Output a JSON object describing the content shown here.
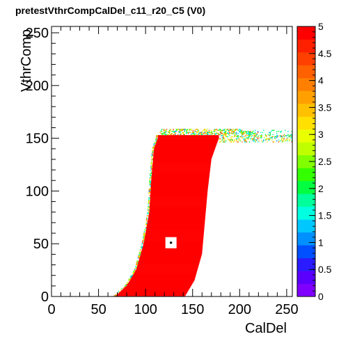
{
  "chart_data": {
    "type": "heatmap",
    "title": "pretestVthrCompCalDel_c11_r20_C5 (V0)",
    "xlabel": "CalDel",
    "ylabel": "VthrComp",
    "xlim": [
      0,
      256
    ],
    "ylim": [
      0,
      256
    ],
    "x_ticks": [
      0,
      50,
      100,
      150,
      200,
      250
    ],
    "y_ticks": [
      0,
      50,
      100,
      150,
      200,
      250
    ],
    "z_range": [
      0,
      5
    ],
    "z_ticks": [
      "0",
      "0.5",
      "1",
      "1.5",
      "2",
      "2.5",
      "3",
      "3.5",
      "4",
      "4.5",
      "5"
    ],
    "palette": [
      "#8000ff",
      "#5a00ff",
      "#2a1cff",
      "#0050ff",
      "#0090ff",
      "#00c8ff",
      "#00ffe0",
      "#00ff9a",
      "#00ff40",
      "#34ff00",
      "#80ff00",
      "#c0ff00",
      "#eaff00",
      "#ffe000",
      "#ffc000",
      "#ffa000",
      "#ff8000",
      "#ff6000",
      "#ff4000",
      "#ff2000",
      "#ff0000"
    ],
    "region": {
      "description_values": "filled band (value 5) bounded by left/right edges per VthrComp",
      "left_edge": [
        [
          0,
          68
        ],
        [
          10,
          80
        ],
        [
          25,
          90
        ],
        [
          50,
          98
        ],
        [
          80,
          104
        ],
        [
          110,
          106
        ],
        [
          140,
          109
        ],
        [
          150,
          113
        ]
      ],
      "right_edge": [
        [
          0,
          142
        ],
        [
          15,
          152
        ],
        [
          40,
          160
        ],
        [
          70,
          163
        ],
        [
          100,
          166
        ],
        [
          130,
          170
        ],
        [
          145,
          176
        ],
        [
          150,
          178
        ]
      ],
      "top_y": 152,
      "fringe_top_y": 158,
      "fringe_x_range": [
        113,
        256
      ],
      "fringe_extend_x": 200,
      "fringe_value_range": [
        1,
        4.5
      ]
    },
    "marker": {
      "x": 127,
      "y": 51
    }
  }
}
